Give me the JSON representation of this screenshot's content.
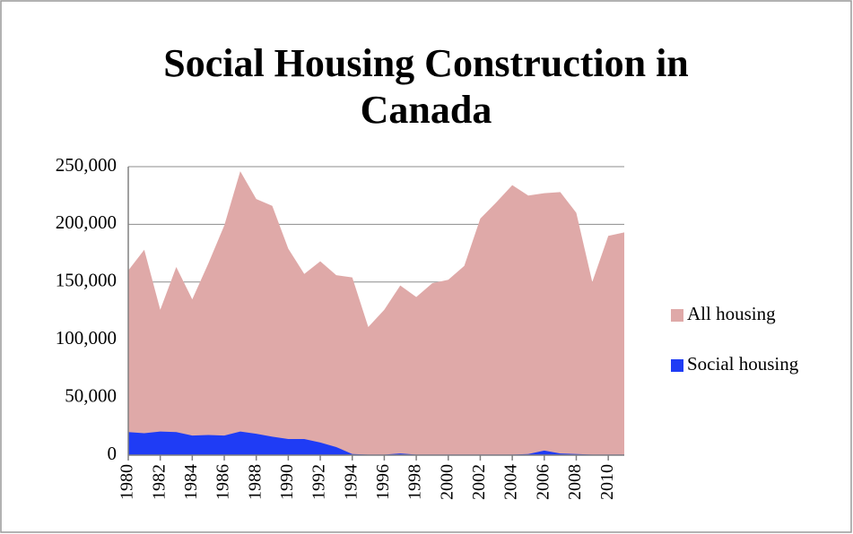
{
  "chart_data": {
    "type": "area",
    "title": "Social Housing Construction in Canada",
    "x": [
      1980,
      1981,
      1982,
      1983,
      1984,
      1985,
      1986,
      1987,
      1988,
      1989,
      1990,
      1991,
      1992,
      1993,
      1994,
      1995,
      1996,
      1997,
      1998,
      1999,
      2000,
      2001,
      2002,
      2003,
      2004,
      2005,
      2006,
      2007,
      2008,
      2009,
      2010,
      2011
    ],
    "xlim": [
      1980,
      2011
    ],
    "xticks": [
      1980,
      1982,
      1984,
      1986,
      1988,
      1990,
      1992,
      1994,
      1996,
      1998,
      2000,
      2002,
      2004,
      2006,
      2008,
      2010
    ],
    "series": [
      {
        "name": "All housing",
        "color": "#dfa9a8",
        "values": [
          160000,
          178000,
          126000,
          163000,
          135000,
          166000,
          199000,
          246000,
          222000,
          216000,
          179000,
          157000,
          168000,
          156000,
          154000,
          111000,
          126000,
          147000,
          137000,
          149000,
          152000,
          164000,
          205000,
          219000,
          234000,
          225000,
          227000,
          228000,
          210000,
          150000,
          190000,
          193000
        ]
      },
      {
        "name": "Social housing",
        "color": "#1f3cf5",
        "values": [
          20000,
          19000,
          20500,
          20000,
          17000,
          17500,
          17000,
          20500,
          18500,
          16000,
          14000,
          14000,
          11000,
          7000,
          1000,
          500,
          500,
          1500,
          500,
          500,
          500,
          500,
          500,
          500,
          500,
          1000,
          4000,
          1500,
          1000,
          500,
          500,
          500
        ]
      }
    ],
    "ylim": [
      0,
      250000
    ],
    "yticks": [
      0,
      {
        "value": 50000,
        "label": "50,000"
      },
      {
        "value": 100000,
        "label": "100,000"
      },
      {
        "value": 150000,
        "label": "150,000"
      },
      {
        "value": 200000,
        "label": "200,000"
      },
      {
        "value": 250000,
        "label": "250,000"
      }
    ],
    "grid": true,
    "legend": "right"
  }
}
